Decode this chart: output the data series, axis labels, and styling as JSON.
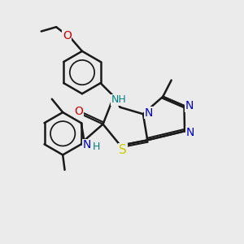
{
  "bg_color": "#ebebeb",
  "C": "#000000",
  "N": "#0000cc",
  "O": "#cc0000",
  "S": "#cccc00",
  "NH_color": "#008080",
  "bond_color": "#1a1a1a",
  "bond_lw": 1.8,
  "figsize": [
    3.0,
    3.0
  ],
  "dpi": 100
}
